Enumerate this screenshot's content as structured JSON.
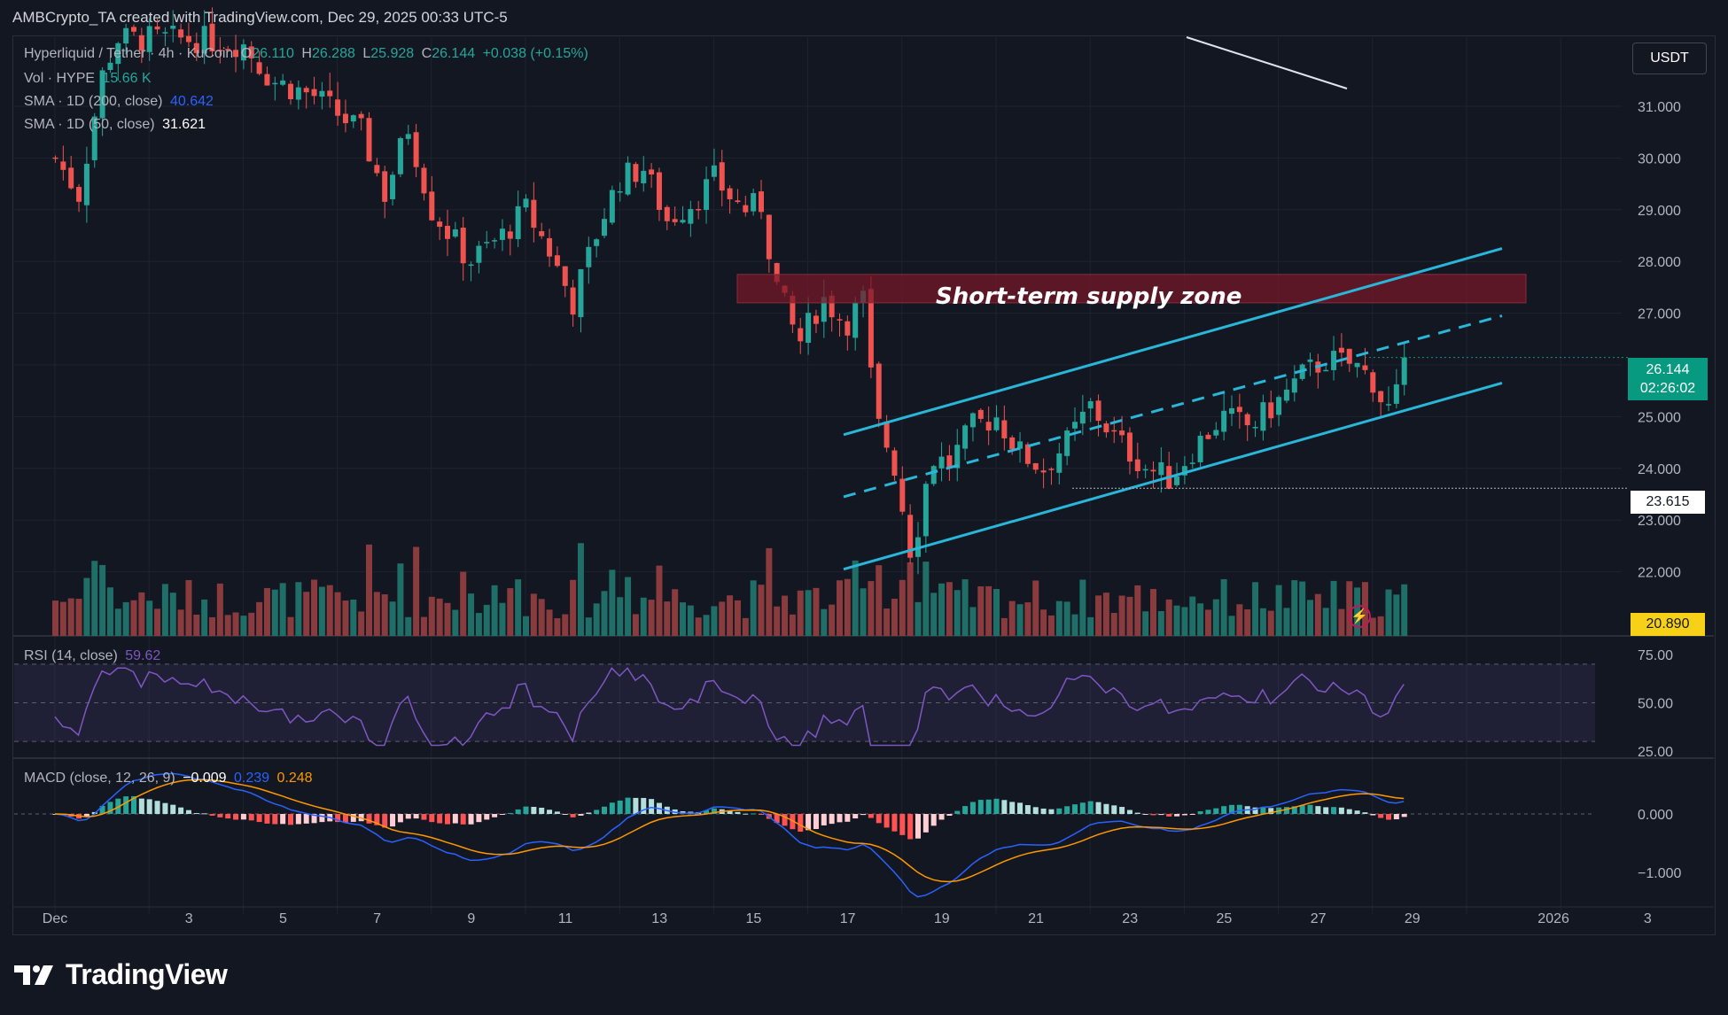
{
  "header": {
    "text": "AMBCrypto_TA created with TradingView.com, Dec 29, 2025 00:33 UTC-5"
  },
  "legend": {
    "symbol": "Hyperliquid / Tether · 4h · KuCoin",
    "o_label": "O",
    "o_value": "26.110",
    "h_label": "H",
    "h_value": "26.288",
    "l_label": "L",
    "l_value": "25.928",
    "c_label": "C",
    "c_value": "26.144",
    "change": "+0.038 (+0.15%)",
    "vol_label": "Vol · HYPE",
    "vol_value": "15.66 K",
    "sma200_label": "SMA · 1D (200, close)",
    "sma200_value": "40.642",
    "sma50_label": "SMA · 1D (50, close)",
    "sma50_value": "31.621",
    "rsi_label": "RSI (14, close)",
    "rsi_value": "59.62",
    "macd_label": "MACD (close, 12, 26, 9)",
    "macd_hist": "−0.009",
    "macd_line": "0.239",
    "macd_signal": "0.248"
  },
  "currency_button": "USDT",
  "annotation": {
    "zone_label": "Short-term supply zone"
  },
  "price_scale": [
    "31.000",
    "30.000",
    "29.000",
    "28.000",
    "27.000",
    "25.000",
    "24.000",
    "23.000",
    "22.000"
  ],
  "current_price": {
    "price": "26.144",
    "countdown": "02:26:02"
  },
  "marked_level": "23.615",
  "low_marker": "20.890",
  "rsi_scale": [
    "75.00",
    "50.00",
    "25.00"
  ],
  "macd_scale": [
    "0.000",
    "−1.000"
  ],
  "time_axis": [
    "Dec",
    "3",
    "5",
    "7",
    "9",
    "11",
    "13",
    "15",
    "17",
    "19",
    "21",
    "23",
    "25",
    "27",
    "29",
    "2026",
    "3"
  ],
  "brand": "TradingView",
  "colors": {
    "up": "#26a69a",
    "down": "#ef5350",
    "channel": "#29b6d8",
    "rsi": "#7e57c2",
    "macd": "#2962ff",
    "signal": "#ff9800",
    "background": "#131722"
  },
  "icons": {
    "alert": "lightning-icon",
    "logo": "tradingview-logo-icon"
  },
  "chart_data": {
    "type": "candlestick",
    "title": "Hyperliquid / Tether · 4h · KuCoin",
    "ylim": [
      20.8,
      32.4
    ],
    "rsi_levels": [
      70,
      50,
      30
    ],
    "supply_zone": [
      27.2,
      27.75
    ],
    "support_level": 23.615,
    "channel": {
      "upper": [
        {
          "x": "Dec 18",
          "y": 24.65
        },
        {
          "x": "Dec 31",
          "y": 28.25
        }
      ],
      "middle": [
        {
          "x": "Dec 18",
          "y": 23.45
        },
        {
          "x": "Dec 31",
          "y": 26.95
        }
      ],
      "lower": [
        {
          "x": "Dec 18",
          "y": 22.05
        },
        {
          "x": "Dec 31",
          "y": 25.65
        }
      ]
    },
    "anchors": [
      {
        "day": 0,
        "p": 30.0
      },
      {
        "day": 0.5,
        "p": 29.3
      },
      {
        "day": 1.0,
        "p": 31.6
      },
      {
        "day": 1.3,
        "p": 32.3
      },
      {
        "day": 2.0,
        "p": 32.3
      },
      {
        "day": 3.0,
        "p": 32.3
      },
      {
        "day": 4.0,
        "p": 32.2
      },
      {
        "day": 4.6,
        "p": 31.5
      },
      {
        "day": 5.5,
        "p": 31.2
      },
      {
        "day": 6.5,
        "p": 30.5
      },
      {
        "day": 7.0,
        "p": 29.3
      },
      {
        "day": 7.5,
        "p": 30.6
      },
      {
        "day": 8.0,
        "p": 29.0
      },
      {
        "day": 8.8,
        "p": 28.0
      },
      {
        "day": 9.5,
        "p": 28.5
      },
      {
        "day": 10.0,
        "p": 29.0
      },
      {
        "day": 10.5,
        "p": 28.2
      },
      {
        "day": 11.0,
        "p": 27.2
      },
      {
        "day": 11.6,
        "p": 28.8
      },
      {
        "day": 12.0,
        "p": 29.6
      },
      {
        "day": 12.5,
        "p": 29.8
      },
      {
        "day": 13.0,
        "p": 28.8
      },
      {
        "day": 13.6,
        "p": 29.2
      },
      {
        "day": 14.0,
        "p": 29.6
      },
      {
        "day": 14.6,
        "p": 29.0
      },
      {
        "day": 15.0,
        "p": 29.1
      },
      {
        "day": 15.3,
        "p": 27.6
      },
      {
        "day": 15.8,
        "p": 26.4
      },
      {
        "day": 16.3,
        "p": 27.3
      },
      {
        "day": 16.8,
        "p": 26.8
      },
      {
        "day": 17.2,
        "p": 27.3
      },
      {
        "day": 17.4,
        "p": 25.0
      },
      {
        "day": 17.8,
        "p": 24.2
      },
      {
        "day": 18.2,
        "p": 22.3
      },
      {
        "day": 18.4,
        "p": 23.2
      },
      {
        "day": 18.6,
        "p": 24.2
      },
      {
        "day": 19.0,
        "p": 24.1
      },
      {
        "day": 19.5,
        "p": 24.8
      },
      {
        "day": 20.0,
        "p": 25.0
      },
      {
        "day": 20.5,
        "p": 24.3
      },
      {
        "day": 21.0,
        "p": 24.0
      },
      {
        "day": 21.5,
        "p": 24.5
      },
      {
        "day": 22.0,
        "p": 25.2
      },
      {
        "day": 22.6,
        "p": 24.5
      },
      {
        "day": 23.2,
        "p": 24.0
      },
      {
        "day": 23.7,
        "p": 23.8
      },
      {
        "day": 24.2,
        "p": 24.4
      },
      {
        "day": 24.8,
        "p": 25.0
      },
      {
        "day": 25.4,
        "p": 24.8
      },
      {
        "day": 26.0,
        "p": 25.3
      },
      {
        "day": 26.5,
        "p": 25.8
      },
      {
        "day": 27.0,
        "p": 26.1
      },
      {
        "day": 27.6,
        "p": 26.0
      },
      {
        "day": 28.0,
        "p": 25.7
      },
      {
        "day": 28.3,
        "p": 25.1
      },
      {
        "day": 28.5,
        "p": 25.4
      },
      {
        "day": 28.8,
        "p": 26.14
      }
    ],
    "sma_segment": [
      {
        "day": 24.0,
        "p": 32.4
      },
      {
        "day": 26.0,
        "p": 31.65
      }
    ]
  }
}
